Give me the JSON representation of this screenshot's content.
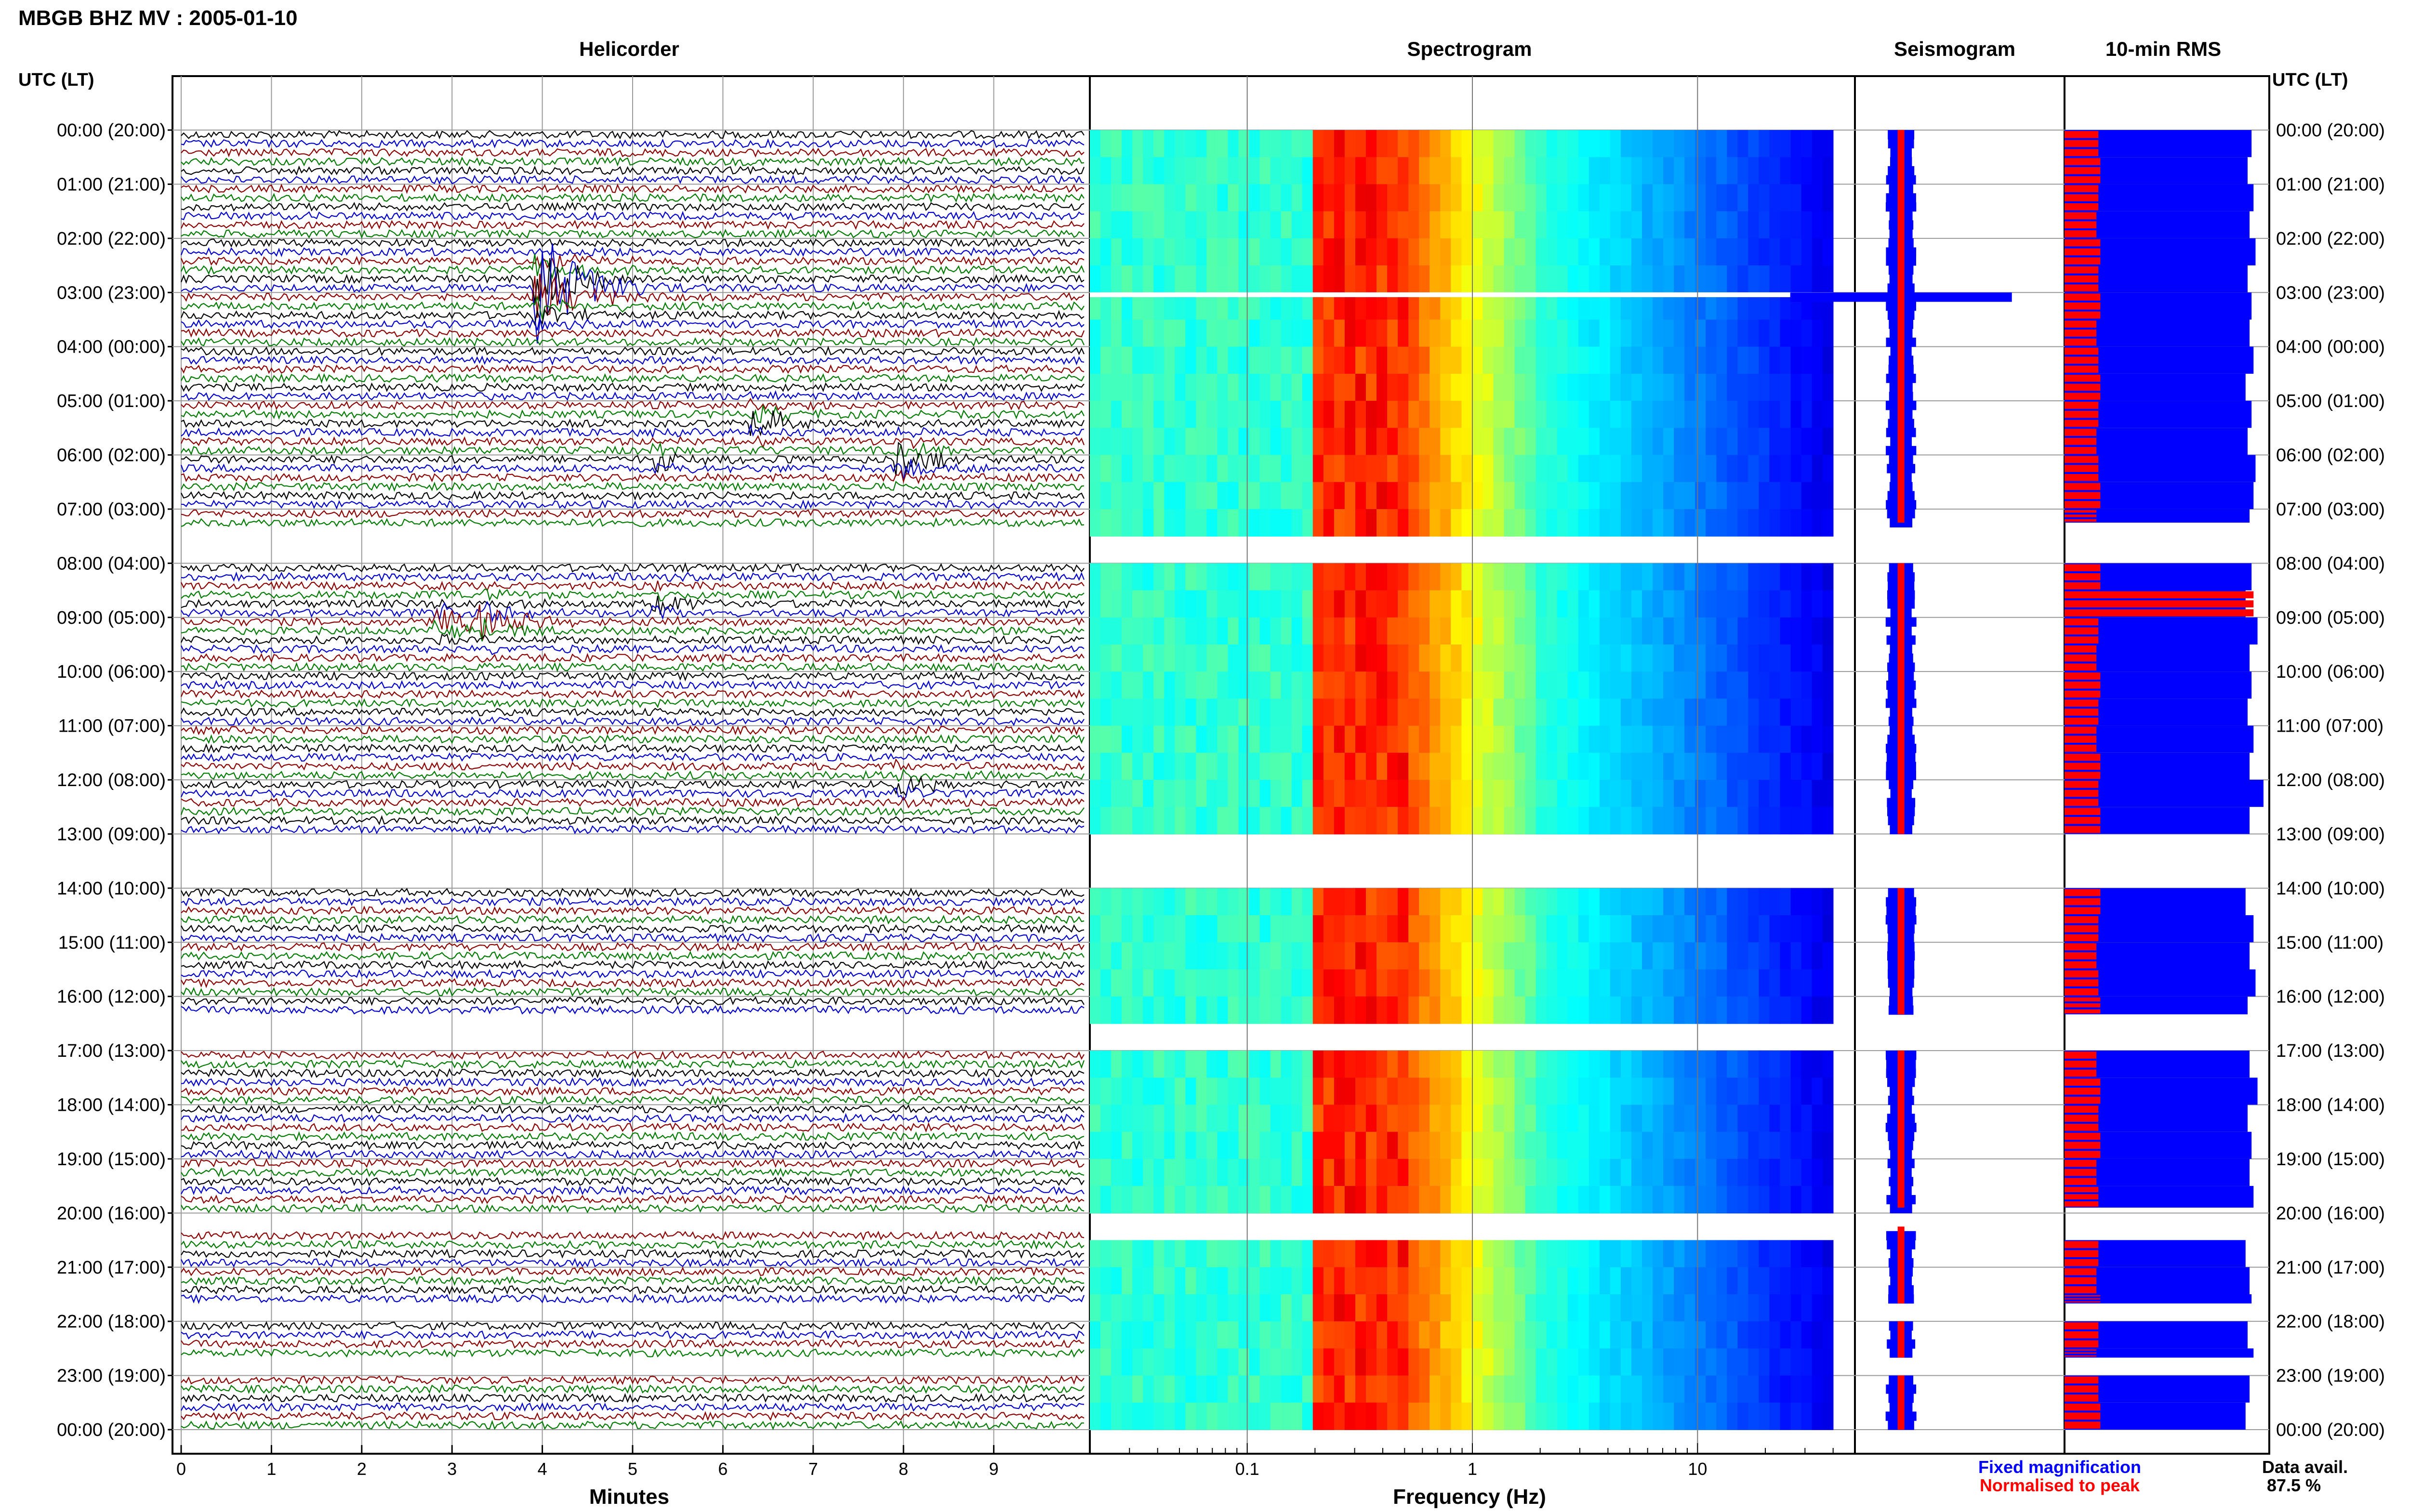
{
  "header": {
    "title": "MBGB BHZ MV : 2005-01-10",
    "time_axis_label": "UTC (LT)",
    "data_avail_label": "Data avail.",
    "data_avail_value": "87.5 %"
  },
  "panels": {
    "helicorder": "Helicorder",
    "spectrogram": "Spectrogram",
    "seismogram": "Seismogram",
    "rms": "10-min RMS"
  },
  "legend": {
    "fixed": "Fixed magnification",
    "normalised": "Normalised to peak"
  },
  "colors": {
    "trace_cycle": [
      "#000000",
      "#0000c8",
      "#8b0000",
      "#007a00"
    ],
    "rms_fixed": "#0000ff",
    "rms_normalised": "#ff0000",
    "spectro_low": "#00008c",
    "spectro_high": "#ff3000"
  },
  "time_labels": [
    "00:00 (20:00)",
    "01:00 (21:00)",
    "02:00 (22:00)",
    "03:00 (23:00)",
    "04:00 (00:00)",
    "05:00 (01:00)",
    "06:00 (02:00)",
    "07:00 (03:00)",
    "08:00 (04:00)",
    "09:00 (05:00)",
    "10:00 (06:00)",
    "11:00 (07:00)",
    "12:00 (08:00)",
    "13:00 (09:00)",
    "14:00 (10:00)",
    "15:00 (11:00)",
    "16:00 (12:00)",
    "17:00 (13:00)",
    "18:00 (14:00)",
    "19:00 (15:00)",
    "20:00 (16:00)",
    "21:00 (17:00)",
    "22:00 (18:00)",
    "23:00 (19:00)",
    "00:00 (20:00)"
  ],
  "chart_data": [
    {
      "type": "line",
      "name": "helicorder",
      "xlabel": "Minutes",
      "xlim": [
        0,
        10
      ],
      "x_ticks": [
        "0",
        "1",
        "2",
        "3",
        "4",
        "5",
        "6",
        "7",
        "8",
        "9"
      ],
      "rows_per_hour": 6,
      "hours": 24,
      "data_segments_utc_hours": [
        [
          0,
          7.25
        ],
        [
          8,
          13
        ],
        [
          14,
          16.33
        ],
        [
          17,
          19.9
        ],
        [
          20.25,
          21.67
        ],
        [
          22,
          22.67
        ],
        [
          23,
          24
        ]
      ],
      "events": [
        {
          "utc_hour": 2.8,
          "minute": 4.0,
          "peak_rel": 5.5,
          "color": "blue"
        },
        {
          "utc_hour": 5.3,
          "minute": 6.4,
          "peak_rel": 1.3,
          "color": "black"
        },
        {
          "utc_hour": 6.0,
          "minute": 8.0,
          "peak_rel": 1.6,
          "color": "red"
        },
        {
          "utc_hour": 6.0,
          "minute": 5.3,
          "peak_rel": 1.0,
          "color": "black"
        },
        {
          "utc_hour": 8.6,
          "minute": 5.3,
          "peak_rel": 1.0,
          "color": "black"
        },
        {
          "utc_hour": 9.0,
          "minute": 3.4,
          "peak_rel": 1.8,
          "color": "blue"
        },
        {
          "utc_hour": 9.0,
          "minute": 2.9,
          "peak_rel": 1.2,
          "color": "green"
        },
        {
          "utc_hour": 12.0,
          "minute": 8.0,
          "peak_rel": 1.0,
          "color": "black"
        }
      ]
    },
    {
      "type": "heatmap",
      "name": "spectrogram",
      "xlabel": "Frequency (Hz)",
      "xscale": "log",
      "xlim": [
        0.02,
        50
      ],
      "x_ticks": [
        "0.1",
        "1",
        "10"
      ],
      "x_tick_values": [
        0.1,
        1,
        10
      ],
      "data_max_hz": 40,
      "peak_band_hz": [
        0.2,
        0.5
      ],
      "colormap": "jet"
    },
    {
      "type": "bar",
      "name": "seismogram",
      "note_event_hour": 3.05
    },
    {
      "type": "bar",
      "name": "10-min RMS",
      "series": [
        {
          "name": "Fixed magnification",
          "values": [
            0.94,
            0.92,
            0.95,
            0.93,
            0.96,
            0.92,
            0.94,
            0.93,
            0.95,
            0.91,
            0.94,
            0.92,
            0.96,
            0.95,
            0.93,
            0.92,
            0.94,
            0.91,
            0.97,
            0.93,
            0.94,
            0.92,
            0.95,
            0.93,
            1.0,
            0.93,
            0.92,
            0.94,
            0.91,
            0.95,
            0.93,
            0.96,
            0.92,
            0.94,
            0.93,
            0.97,
            0.92,
            0.94,
            0.93,
            0.95,
            0.92,
            0.91,
            0.93,
            0.94,
            0.92,
            0.95,
            0.93,
            0.91
          ]
        },
        {
          "name": "Normalised to peak",
          "values": [
            0.17,
            0.18,
            0.17,
            0.16,
            0.18,
            0.17,
            0.18,
            0.16,
            0.17,
            0.18,
            0.17,
            0.16,
            0.17,
            0.18,
            0.16,
            0.17,
            0.18,
            0.95,
            0.17,
            0.16,
            0.18,
            0.17,
            0.16,
            0.18,
            0.17,
            0.18,
            0.16,
            0.17,
            0.18,
            0.17,
            0.16,
            0.17,
            0.18,
            0.17,
            0.16,
            0.18,
            0.17,
            0.18,
            0.16,
            0.17,
            0.18,
            0.17,
            0.16,
            0.18,
            0.17,
            0.16,
            0.17,
            0.18
          ]
        }
      ]
    }
  ]
}
